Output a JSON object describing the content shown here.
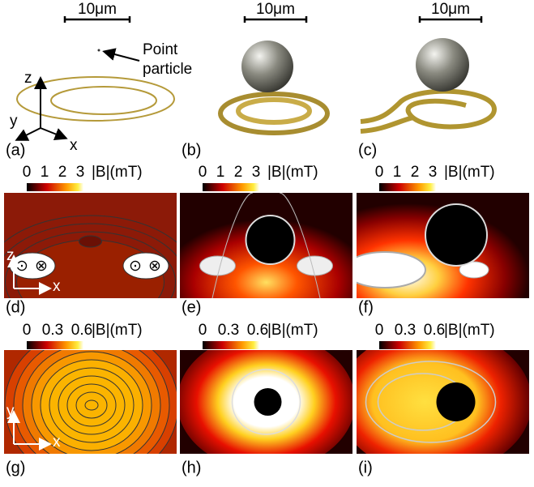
{
  "top_panels": [
    {
      "label": "(a)",
      "scale_bar": "10μm",
      "annotation": [
        "Point",
        "particle"
      ],
      "axes": [
        "z",
        "y",
        "x"
      ]
    },
    {
      "label": "(b)",
      "scale_bar": "10μm"
    },
    {
      "label": "(c)",
      "scale_bar": "10μm"
    }
  ],
  "field_rows": [
    {
      "panels": [
        {
          "label": "(d)",
          "colorbar": {
            "ticks": [
              "0",
              "1",
              "2",
              "3"
            ],
            "unit": "|B|(mT)"
          },
          "axes": [
            "z",
            "x"
          ],
          "symbols": [
            "⊙",
            "⊗",
            "⊙",
            "⊗"
          ]
        },
        {
          "label": "(e)",
          "colorbar": {
            "ticks": [
              "0",
              "1",
              "2",
              "3"
            ],
            "unit": "|B|(mT)"
          }
        },
        {
          "label": "(f)",
          "colorbar": {
            "ticks": [
              "0",
              "1",
              "2",
              "3"
            ],
            "unit": "|B|(mT)"
          }
        }
      ]
    },
    {
      "panels": [
        {
          "label": "(g)",
          "colorbar": {
            "ticks": [
              "0",
              "0.3",
              "0.6"
            ],
            "unit": "|B|(mT)"
          },
          "axes": [
            "y",
            "x"
          ]
        },
        {
          "label": "(h)",
          "colorbar": {
            "ticks": [
              "0",
              "0.3",
              "0.6"
            ],
            "unit": "|B|(mT)"
          }
        },
        {
          "label": "(i)",
          "colorbar": {
            "ticks": [
              "0",
              "0.3",
              "0.6"
            ],
            "unit": "|B|(mT)"
          }
        }
      ]
    }
  ]
}
